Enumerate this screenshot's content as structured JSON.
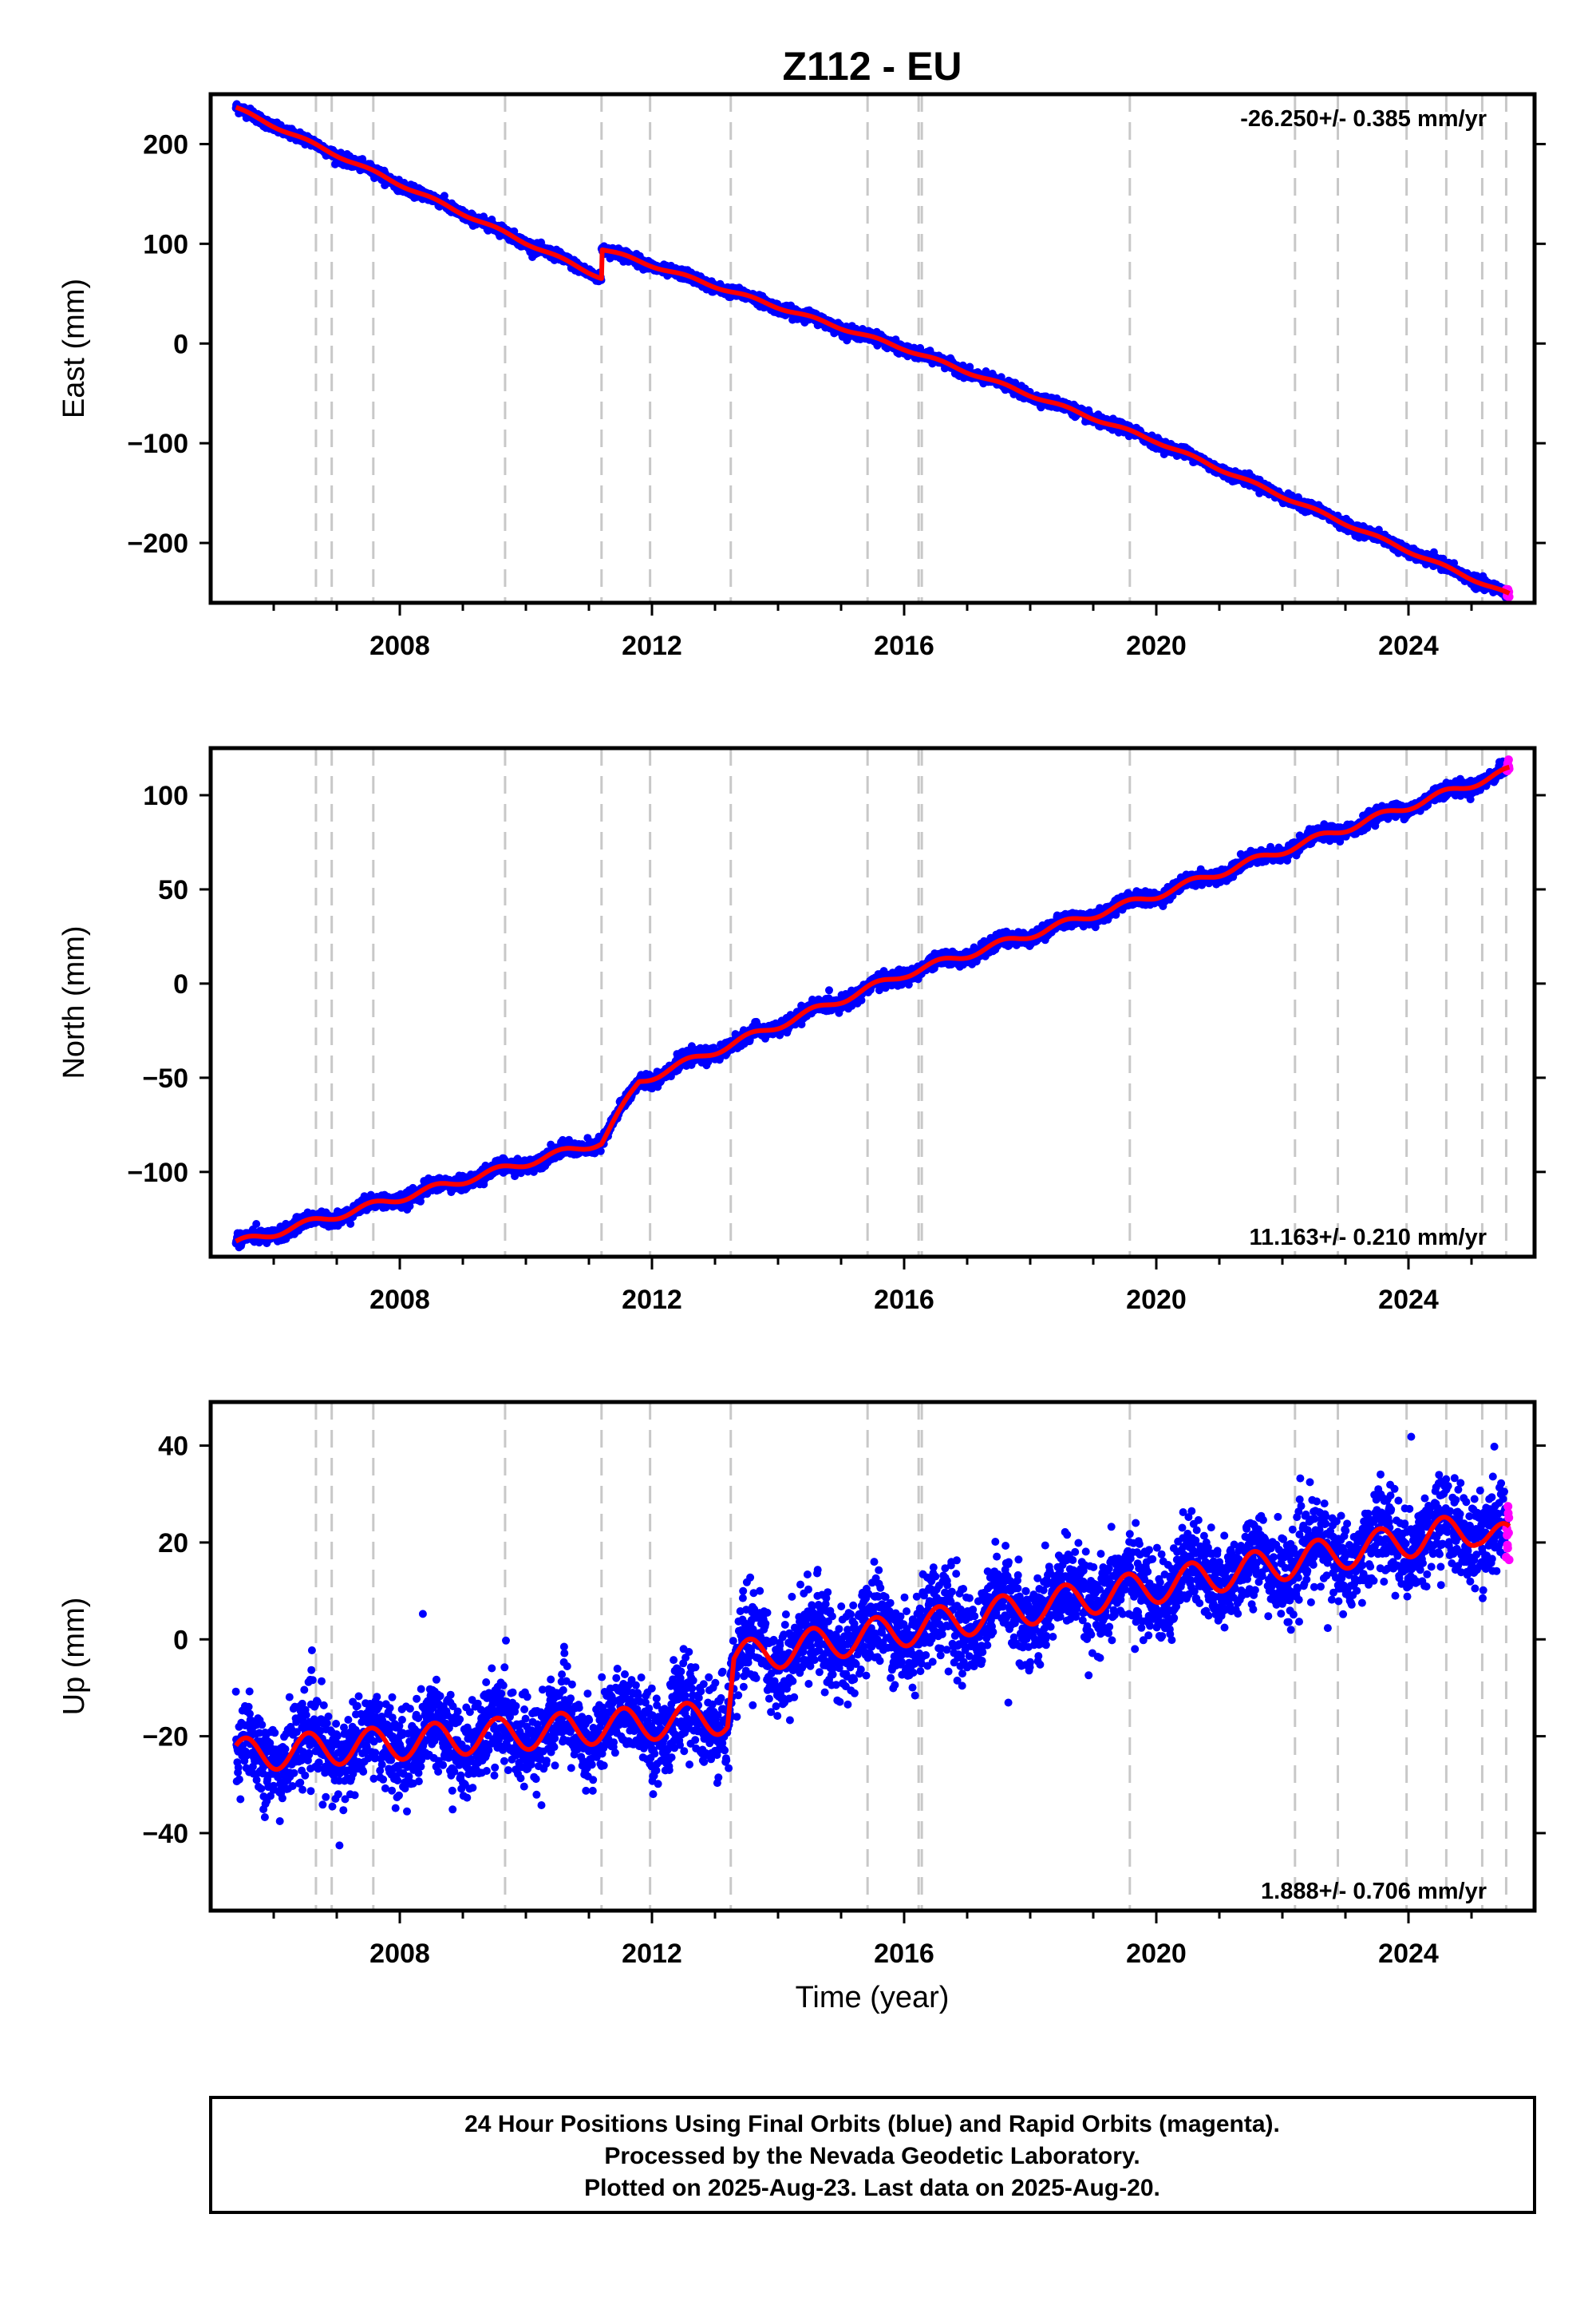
{
  "title": "Z112 - EU",
  "xlabel": "Time (year)",
  "xticks": [
    "2008",
    "2012",
    "2016",
    "2020",
    "2024"
  ],
  "colors": {
    "final_orbits": "#0000ff",
    "rapid_orbits": "#ff00ff",
    "model": "#ff0000",
    "step_line": "#c8c8c8"
  },
  "footer": {
    "line1": "24 Hour Positions Using Final Orbits (blue) and Rapid Orbits (magenta).",
    "line2": "Processed by the Nevada Geodetic Laboratory.",
    "line3": "Plotted on 2025-Aug-23. Last data on 2025-Aug-20."
  },
  "chart_data": [
    {
      "type": "scatter",
      "panel": "east",
      "ylabel": "East (mm)",
      "rate_label": "-26.250+/- 0.385 mm/yr",
      "rate_position": "top-right",
      "xlim": [
        2005.0,
        2026.0
      ],
      "ylim": [
        -260,
        250
      ],
      "yticks": [
        200,
        100,
        0,
        -100,
        -200
      ],
      "rate_mm_per_yr": -26.25,
      "offsets_mm": [
        {
          "x": 2011.2,
          "dy": 29
        }
      ],
      "noise_mm": 2.5,
      "seasonal_amplitude_mm": 1.5,
      "anchor_points": [
        {
          "x": 2005.4,
          "y": 236
        },
        {
          "x": 2011.2,
          "y": 66
        },
        {
          "x": 2011.2,
          "y": 95
        },
        {
          "x": 2016.0,
          "y": -5
        },
        {
          "x": 2020.0,
          "y": -98
        },
        {
          "x": 2025.6,
          "y": -252
        }
      ],
      "step_years": [
        2006.67,
        2006.92,
        2007.58,
        2009.67,
        2011.2,
        2011.97,
        2013.25,
        2015.42,
        2016.23,
        2016.28,
        2019.58,
        2022.2,
        2022.88,
        2023.97,
        2024.6,
        2025.17,
        2025.55
      ]
    },
    {
      "type": "scatter",
      "panel": "north",
      "ylabel": "North (mm)",
      "rate_label": "11.163+/- 0.210 mm/yr",
      "rate_position": "bottom-right",
      "xlim": [
        2005.0,
        2026.0
      ],
      "ylim": [
        -145,
        125
      ],
      "yticks": [
        100,
        50,
        0,
        -50,
        -100
      ],
      "rate_mm_per_yr": 11.163,
      "offsets_mm": [
        {
          "x": 2011.2,
          "dy": 4
        }
      ],
      "noise_mm": 1.8,
      "seasonal_amplitude_mm": 2,
      "anchor_points": [
        {
          "x": 2005.4,
          "y": -138
        },
        {
          "x": 2011.2,
          "y": -84
        },
        {
          "x": 2011.8,
          "y": -52
        },
        {
          "x": 2016.0,
          "y": 5
        },
        {
          "x": 2020.0,
          "y": 47
        },
        {
          "x": 2025.6,
          "y": 113
        }
      ],
      "step_years": [
        2006.67,
        2006.92,
        2007.58,
        2009.67,
        2011.2,
        2011.97,
        2013.25,
        2015.42,
        2016.23,
        2016.28,
        2019.58,
        2022.2,
        2022.88,
        2023.97,
        2024.6,
        2025.17,
        2025.55
      ]
    },
    {
      "type": "scatter",
      "panel": "up",
      "ylabel": "Up (mm)",
      "rate_label": "1.888+/- 0.706 mm/yr",
      "rate_position": "bottom-right",
      "xlim": [
        2005.0,
        2026.0
      ],
      "ylim": [
        -56,
        49
      ],
      "yticks": [
        40,
        20,
        0,
        -20,
        -40
      ],
      "rate_mm_per_yr": 1.888,
      "offsets_mm": [
        {
          "x": 2013.25,
          "dy": 10
        },
        {
          "x": 2025.17,
          "dy": -8
        }
      ],
      "noise_mm": 4.5,
      "seasonal_amplitude_mm": 3.5,
      "anchor_points": [
        {
          "x": 2005.4,
          "y": -24
        },
        {
          "x": 2013.2,
          "y": -16
        },
        {
          "x": 2013.3,
          "y": -4
        },
        {
          "x": 2020.0,
          "y": 11
        },
        {
          "x": 2025.1,
          "y": 23
        },
        {
          "x": 2025.6,
          "y": 20
        }
      ],
      "step_years": [
        2006.67,
        2006.92,
        2007.58,
        2009.67,
        2011.2,
        2011.97,
        2013.25,
        2015.42,
        2016.23,
        2016.28,
        2019.58,
        2022.2,
        2022.88,
        2023.97,
        2024.6,
        2025.17,
        2025.55
      ]
    }
  ]
}
